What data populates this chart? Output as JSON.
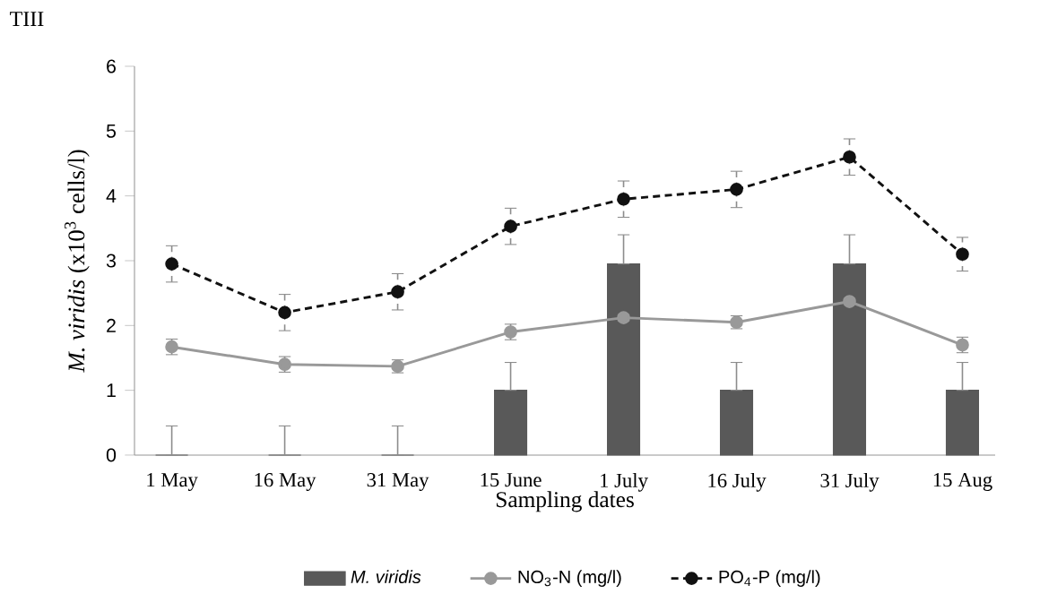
{
  "chart_data": {
    "type": "bar",
    "title": "TIII",
    "xlabel": "Sampling dates",
    "ylabel": "*M. viridis* (x10$^{3}$ cells/l)",
    "categories": [
      "1 May",
      "16 May",
      "31 May",
      "15 June",
      "1 July",
      "16 July",
      "31 July",
      "15 Aug"
    ],
    "ylim": [
      0,
      6
    ],
    "yticks": [
      0,
      1,
      2,
      3,
      4,
      5,
      6
    ],
    "legend": "bottom",
    "grid": false,
    "series": [
      {
        "name": "*M. viridis*",
        "color": "#595959",
        "values": [
          0,
          0,
          0,
          1,
          2.95,
          1,
          2.95,
          1
        ],
        "errors": [
          [
            0,
            0.45
          ],
          [
            0,
            0.45
          ],
          [
            0,
            0.45
          ],
          [
            1,
            1.43
          ],
          [
            2.95,
            3.4
          ],
          [
            1,
            1.43
          ],
          [
            2.95,
            3.4
          ],
          [
            1,
            1.43
          ]
        ]
      },
      {
        "name": "NO$_{3}$-N (mg/l)",
        "type": "line",
        "color": "#999999",
        "marker": "circle",
        "line_style": "solid",
        "values": [
          1.67,
          1.4,
          1.37,
          1.9,
          2.12,
          2.05,
          2.37,
          1.7
        ],
        "errors": [
          0.12,
          0.12,
          0.1,
          0.12,
          0.05,
          0.1,
          0.05,
          0.12
        ]
      },
      {
        "name": "PO$_{4}$-P (mg/l)",
        "type": "line",
        "color": "#111111",
        "marker": "circle",
        "line_style": "dashed",
        "values": [
          2.95,
          2.2,
          2.52,
          3.53,
          3.95,
          4.1,
          4.6,
          3.1
        ],
        "errors": [
          0.28,
          0.28,
          0.28,
          0.28,
          0.28,
          0.28,
          0.28,
          0.26
        ]
      }
    ]
  }
}
